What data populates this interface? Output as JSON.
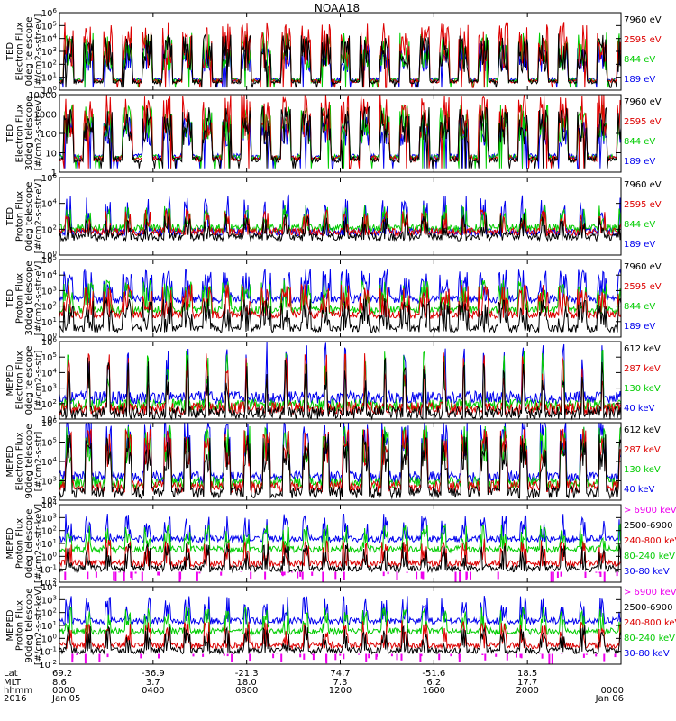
{
  "title": "NOAA18",
  "chart_data": {
    "type": "line",
    "title": "NOAA18",
    "panels": [
      {
        "ylabel": [
          "TED",
          "Electron Flux",
          "0deg telescope",
          "[#/cm2-s-str-eV]"
        ],
        "yscale": "log",
        "ylim_exp": [
          0,
          6
        ],
        "ticks": [
          {
            "b": "10",
            "e": "0",
            "v": 0
          },
          {
            "b": "10",
            "e": "1",
            "v": 1
          },
          {
            "b": "10",
            "e": "2",
            "v": 2
          },
          {
            "b": "10",
            "e": "3",
            "v": 3
          },
          {
            "b": "10",
            "e": "4",
            "v": 4
          },
          {
            "b": "10",
            "e": "5",
            "v": 5
          },
          {
            "b": "10",
            "e": "6",
            "v": 6
          }
        ],
        "legend": [
          {
            "name": "7960 eV",
            "color": "#000000"
          },
          {
            "name": "2595 eV",
            "color": "#dd0000"
          },
          {
            "name": "844 eV",
            "color": "#00cc00"
          },
          {
            "name": "189 eV",
            "color": "#0000ee"
          }
        ],
        "style": "electron_ted"
      },
      {
        "ylabel": [
          "TED",
          "Electron Flux",
          "30deg telescope",
          "[#/cm2-s-str-eV]"
        ],
        "yscale": "log",
        "ylim_exp": [
          0,
          4
        ],
        "ticks": [
          {
            "b": "1",
            "e": "",
            "v": 0
          },
          {
            "b": "10",
            "e": "",
            "v": 1
          },
          {
            "b": "100",
            "e": "",
            "v": 2
          },
          {
            "b": "1000",
            "e": "",
            "v": 3
          },
          {
            "b": "10000",
            "e": "",
            "v": 4
          }
        ],
        "legend": [
          {
            "name": "7960 eV",
            "color": "#000000"
          },
          {
            "name": "2595 eV",
            "color": "#dd0000"
          },
          {
            "name": "844 eV",
            "color": "#00cc00"
          },
          {
            "name": "189 eV",
            "color": "#0000ee"
          }
        ],
        "style": "electron_ted"
      },
      {
        "ylabel": [
          "TED",
          "Proton Flux",
          "0deg telescope",
          "[#/cm2-s-str-eV]"
        ],
        "yscale": "log",
        "ylim_exp": [
          0,
          6
        ],
        "ticks": [
          {
            "b": "10",
            "e": "0",
            "v": 0
          },
          {
            "b": "10",
            "e": "2",
            "v": 2
          },
          {
            "b": "10",
            "e": "4",
            "v": 4
          },
          {
            "b": "10",
            "e": "6",
            "v": 6
          }
        ],
        "legend": [
          {
            "name": "7960 eV",
            "color": "#000000"
          },
          {
            "name": "2595 eV",
            "color": "#dd0000"
          },
          {
            "name": "844 eV",
            "color": "#00cc00"
          },
          {
            "name": "189 eV",
            "color": "#0000ee"
          }
        ],
        "style": "proton_ted"
      },
      {
        "ylabel": [
          "TED",
          "Proton Flux",
          "30deg telescope",
          "[#/cm2-s-str-eV]"
        ],
        "yscale": "log",
        "ylim_exp": [
          0,
          5
        ],
        "ticks": [
          {
            "b": "10",
            "e": "0",
            "v": 0
          },
          {
            "b": "10",
            "e": "1",
            "v": 1
          },
          {
            "b": "10",
            "e": "2",
            "v": 2
          },
          {
            "b": "10",
            "e": "3",
            "v": 3
          },
          {
            "b": "10",
            "e": "4",
            "v": 4
          },
          {
            "b": "10",
            "e": "5",
            "v": 5
          }
        ],
        "legend": [
          {
            "name": "7960 eV",
            "color": "#000000"
          },
          {
            "name": "2595 eV",
            "color": "#dd0000"
          },
          {
            "name": "844 eV",
            "color": "#00cc00"
          },
          {
            "name": "189 eV",
            "color": "#0000ee"
          }
        ],
        "style": "proton_ted2"
      },
      {
        "ylabel": [
          "MEPED",
          "Electron Flux",
          "0deg telescope",
          "[#/cm2-s-str]"
        ],
        "yscale": "log",
        "ylim_exp": [
          1,
          6
        ],
        "ticks": [
          {
            "b": "10",
            "e": "1",
            "v": 1
          },
          {
            "b": "10",
            "e": "2",
            "v": 2
          },
          {
            "b": "10",
            "e": "3",
            "v": 3
          },
          {
            "b": "10",
            "e": "4",
            "v": 4
          },
          {
            "b": "10",
            "e": "5",
            "v": 5
          },
          {
            "b": "10",
            "e": "6",
            "v": 6
          }
        ],
        "legend": [
          {
            "name": "612 keV",
            "color": "#000000"
          },
          {
            "name": "287 keV",
            "color": "#dd0000"
          },
          {
            "name": "130 keV",
            "color": "#00cc00"
          },
          {
            "name": "40 keV",
            "color": "#0000ee"
          }
        ],
        "style": "meped_e0"
      },
      {
        "ylabel": [
          "MEPED",
          "Electron Flux",
          "90deg telescope",
          "[#/cm2-s-str]"
        ],
        "yscale": "log",
        "ylim_exp": [
          2,
          6
        ],
        "ticks": [
          {
            "b": "10",
            "e": "2",
            "v": 2
          },
          {
            "b": "10",
            "e": "3",
            "v": 3
          },
          {
            "b": "10",
            "e": "4",
            "v": 4
          },
          {
            "b": "10",
            "e": "5",
            "v": 5
          },
          {
            "b": "10",
            "e": "6",
            "v": 6
          }
        ],
        "legend": [
          {
            "name": "612 keV",
            "color": "#000000"
          },
          {
            "name": "287 keV",
            "color": "#dd0000"
          },
          {
            "name": "130 keV",
            "color": "#00cc00"
          },
          {
            "name": "40 keV",
            "color": "#0000ee"
          }
        ],
        "style": "meped_e90"
      },
      {
        "ylabel": [
          "MEPED",
          "Proton Flux",
          "0deg telescope",
          "[#/cm2-s-str-keV]"
        ],
        "yscale": "log",
        "ylim_exp": [
          -2,
          4
        ],
        "ticks": [
          {
            "b": "10",
            "e": "-2",
            "v": -2
          },
          {
            "b": "10",
            "e": "-1",
            "v": -1
          },
          {
            "b": "10",
            "e": "0",
            "v": 0
          },
          {
            "b": "10",
            "e": "1",
            "v": 1
          },
          {
            "b": "10",
            "e": "2",
            "v": 2
          },
          {
            "b": "10",
            "e": "3",
            "v": 3
          },
          {
            "b": "10",
            "e": "4",
            "v": 4
          }
        ],
        "legend": [
          {
            "name": "> 6900 keV",
            "color": "#ee00ee"
          },
          {
            "name": "2500-6900",
            "color": "#000000"
          },
          {
            "name": "240-800 keV",
            "color": "#dd0000"
          },
          {
            "name": "80-240 keV",
            "color": "#00cc00"
          },
          {
            "name": "30-80 keV",
            "color": "#0000ee"
          }
        ],
        "style": "meped_p"
      },
      {
        "ylabel": [
          "MEPED",
          "Proton Flux",
          "90deg telescope",
          "[#/cm2-s-str-keV]"
        ],
        "yscale": "log",
        "ylim_exp": [
          -2,
          4
        ],
        "ticks": [
          {
            "b": "10",
            "e": "-2",
            "v": -2
          },
          {
            "b": "10",
            "e": "-1",
            "v": -1
          },
          {
            "b": "10",
            "e": "0",
            "v": 0
          },
          {
            "b": "10",
            "e": "1",
            "v": 1
          },
          {
            "b": "10",
            "e": "2",
            "v": 2
          },
          {
            "b": "10",
            "e": "3",
            "v": 3
          },
          {
            "b": "10",
            "e": "4",
            "v": 4
          }
        ],
        "legend": [
          {
            "name": "> 6900 keV",
            "color": "#ee00ee"
          },
          {
            "name": "2500-6900",
            "color": "#000000"
          },
          {
            "name": "240-800 keV",
            "color": "#dd0000"
          },
          {
            "name": "80-240 keV",
            "color": "#00cc00"
          },
          {
            "name": "30-80 keV",
            "color": "#0000ee"
          }
        ],
        "style": "meped_p"
      }
    ],
    "xaxis": {
      "row_labels": [
        "Lat",
        "MLT",
        "hhmm",
        "2016"
      ],
      "columns": [
        {
          "pos": 0,
          "lat": "69.2",
          "mlt": "8.6",
          "hhmm": "0000",
          "date": "Jan 05"
        },
        {
          "pos": 4,
          "lat": "-36.9",
          "mlt": "3.7",
          "hhmm": "0400",
          "date": ""
        },
        {
          "pos": 8,
          "lat": "-21.3",
          "mlt": "18.0",
          "hhmm": "0800",
          "date": ""
        },
        {
          "pos": 12,
          "lat": "74.7",
          "mlt": "7.3",
          "hhmm": "1200",
          "date": ""
        },
        {
          "pos": 16,
          "lat": "-51.6",
          "mlt": "6.2",
          "hhmm": "1600",
          "date": ""
        },
        {
          "pos": 20,
          "lat": "18.5",
          "mlt": "17.7",
          "hhmm": "2000",
          "date": ""
        },
        {
          "pos": 24,
          "lat": "",
          "mlt": "",
          "hhmm": "0000",
          "date": "Jan 06"
        }
      ],
      "xlim_hours": [
        0,
        24
      ]
    }
  }
}
